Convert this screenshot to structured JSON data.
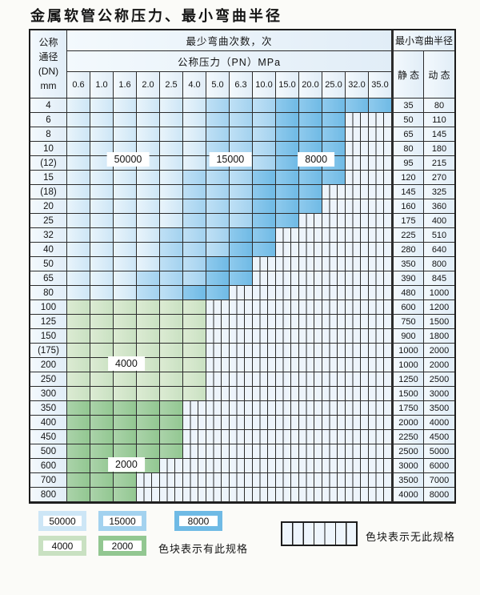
{
  "title": "金属软管公称压力、最小弯曲半径",
  "table": {
    "dn_header_lines": [
      "公称",
      "通径",
      "(DN)",
      "mm"
    ],
    "cycles_header": "最少弯曲次数，次",
    "pressure_header": "公称压力（PN）MPa",
    "pressures": [
      "0.6",
      "1.0",
      "1.6",
      "2.0",
      "2.5",
      "4.0",
      "5.0",
      "6.3",
      "10.0",
      "15.0",
      "20.0",
      "25.0",
      "32.0",
      "35.0"
    ],
    "radius_header": "最小弯曲半径",
    "static_header": "静 态",
    "dynamic_header": "动 态",
    "rows": [
      {
        "dn": "4",
        "st": "35",
        "dy": "80",
        "spec": [
          [
            0,
            5,
            "b1"
          ],
          [
            6,
            8,
            "b2"
          ],
          [
            9,
            13,
            "b3"
          ]
        ]
      },
      {
        "dn": "6",
        "st": "50",
        "dy": "110",
        "spec": [
          [
            0,
            5,
            "b1"
          ],
          [
            6,
            8,
            "b2"
          ],
          [
            9,
            11,
            "b3"
          ]
        ]
      },
      {
        "dn": "8",
        "st": "65",
        "dy": "145",
        "spec": [
          [
            0,
            5,
            "b1"
          ],
          [
            6,
            8,
            "b2"
          ],
          [
            9,
            11,
            "b3"
          ]
        ]
      },
      {
        "dn": "10",
        "st": "80",
        "dy": "180",
        "spec": [
          [
            0,
            5,
            "b1"
          ],
          [
            6,
            8,
            "b2"
          ],
          [
            9,
            11,
            "b3"
          ]
        ]
      },
      {
        "dn": "(12)",
        "st": "95",
        "dy": "215",
        "spec": [
          [
            0,
            5,
            "b1"
          ],
          [
            6,
            8,
            "b2"
          ],
          [
            9,
            11,
            "b3"
          ]
        ]
      },
      {
        "dn": "15",
        "st": "120",
        "dy": "270",
        "spec": [
          [
            0,
            4,
            "b1"
          ],
          [
            5,
            7,
            "b2"
          ],
          [
            8,
            11,
            "b3"
          ]
        ]
      },
      {
        "dn": "(18)",
        "st": "145",
        "dy": "325",
        "spec": [
          [
            0,
            4,
            "b1"
          ],
          [
            5,
            7,
            "b2"
          ],
          [
            8,
            10,
            "b3"
          ]
        ]
      },
      {
        "dn": "20",
        "st": "160",
        "dy": "360",
        "spec": [
          [
            0,
            4,
            "b1"
          ],
          [
            5,
            7,
            "b2"
          ],
          [
            8,
            10,
            "b3"
          ]
        ]
      },
      {
        "dn": "25",
        "st": "175",
        "dy": "400",
        "spec": [
          [
            0,
            4,
            "b1"
          ],
          [
            5,
            7,
            "b2"
          ],
          [
            8,
            9,
            "b3"
          ]
        ]
      },
      {
        "dn": "32",
        "st": "225",
        "dy": "510",
        "spec": [
          [
            0,
            3,
            "b1"
          ],
          [
            4,
            6,
            "b2"
          ],
          [
            7,
            8,
            "b3"
          ]
        ]
      },
      {
        "dn": "40",
        "st": "280",
        "dy": "640",
        "spec": [
          [
            0,
            3,
            "b1"
          ],
          [
            4,
            6,
            "b2"
          ],
          [
            7,
            8,
            "b3"
          ]
        ]
      },
      {
        "dn": "50",
        "st": "350",
        "dy": "800",
        "spec": [
          [
            0,
            3,
            "b1"
          ],
          [
            4,
            5,
            "b2"
          ],
          [
            6,
            7,
            "b3"
          ]
        ]
      },
      {
        "dn": "65",
        "st": "390",
        "dy": "845",
        "spec": [
          [
            0,
            2,
            "b1"
          ],
          [
            3,
            5,
            "b2"
          ],
          [
            6,
            7,
            "b3"
          ]
        ]
      },
      {
        "dn": "80",
        "st": "480",
        "dy": "1000",
        "spec": [
          [
            0,
            2,
            "b1"
          ],
          [
            3,
            4,
            "b2"
          ],
          [
            5,
            6,
            "b3"
          ]
        ]
      },
      {
        "dn": "100",
        "st": "600",
        "dy": "1200",
        "spec": [
          [
            0,
            5,
            "g1"
          ]
        ]
      },
      {
        "dn": "125",
        "st": "750",
        "dy": "1500",
        "spec": [
          [
            0,
            5,
            "g1"
          ]
        ]
      },
      {
        "dn": "150",
        "st": "900",
        "dy": "1800",
        "spec": [
          [
            0,
            5,
            "g1"
          ]
        ]
      },
      {
        "dn": "(175)",
        "st": "1000",
        "dy": "2000",
        "spec": [
          [
            0,
            5,
            "g1"
          ]
        ]
      },
      {
        "dn": "200",
        "st": "1000",
        "dy": "2000",
        "spec": [
          [
            0,
            5,
            "g1"
          ]
        ]
      },
      {
        "dn": "250",
        "st": "1250",
        "dy": "2500",
        "spec": [
          [
            0,
            5,
            "g1"
          ]
        ]
      },
      {
        "dn": "300",
        "st": "1500",
        "dy": "3000",
        "spec": [
          [
            0,
            5,
            "g1"
          ]
        ]
      },
      {
        "dn": "350",
        "st": "1750",
        "dy": "3500",
        "spec": [
          [
            0,
            4,
            "g2"
          ]
        ]
      },
      {
        "dn": "400",
        "st": "2000",
        "dy": "4000",
        "spec": [
          [
            0,
            4,
            "g2"
          ]
        ]
      },
      {
        "dn": "450",
        "st": "2250",
        "dy": "4500",
        "spec": [
          [
            0,
            4,
            "g2"
          ]
        ]
      },
      {
        "dn": "500",
        "st": "2500",
        "dy": "5000",
        "spec": [
          [
            0,
            4,
            "g2"
          ]
        ]
      },
      {
        "dn": "600",
        "st": "3000",
        "dy": "6000",
        "spec": [
          [
            0,
            3,
            "g2"
          ]
        ]
      },
      {
        "dn": "700",
        "st": "3500",
        "dy": "7000",
        "spec": [
          [
            0,
            2,
            "g2"
          ]
        ]
      },
      {
        "dn": "800",
        "st": "4000",
        "dy": "8000",
        "spec": [
          [
            0,
            2,
            "g2"
          ]
        ]
      }
    ],
    "annotations": [
      {
        "text": "50000",
        "col": 2.62,
        "row": 4.2
      },
      {
        "text": "15000",
        "col": 7.03,
        "row": 4.2
      },
      {
        "text": "8000",
        "col": 10.73,
        "row": 4.2
      },
      {
        "text": "4000",
        "col": 2.55,
        "row": 18.4
      },
      {
        "text": "2000",
        "col": 2.55,
        "row": 25.4
      }
    ]
  },
  "colors": {
    "b1": {
      "from": "#e9f4fb",
      "to": "#cde6f6"
    },
    "b2": {
      "from": "#bfe0f5",
      "to": "#a3d2ef"
    },
    "b3": {
      "from": "#8fcaed",
      "to": "#6fbae5"
    },
    "g1": {
      "from": "#dcebd3",
      "to": "#c9e1c2"
    },
    "g2": {
      "from": "#abd3aa",
      "to": "#92c791"
    },
    "stripe_bg": "#edf4fb",
    "line": "#2c2c2c"
  },
  "legend": {
    "items": [
      {
        "label": "50000",
        "level": "b1"
      },
      {
        "label": "15000",
        "level": "b2"
      },
      {
        "label": "8000",
        "level": "b3"
      },
      {
        "label": "4000",
        "level": "g1"
      },
      {
        "label": "2000",
        "level": "g2"
      }
    ],
    "has_spec_text": "色块表示有此规格",
    "no_spec_text": "色块表示无此规格"
  }
}
